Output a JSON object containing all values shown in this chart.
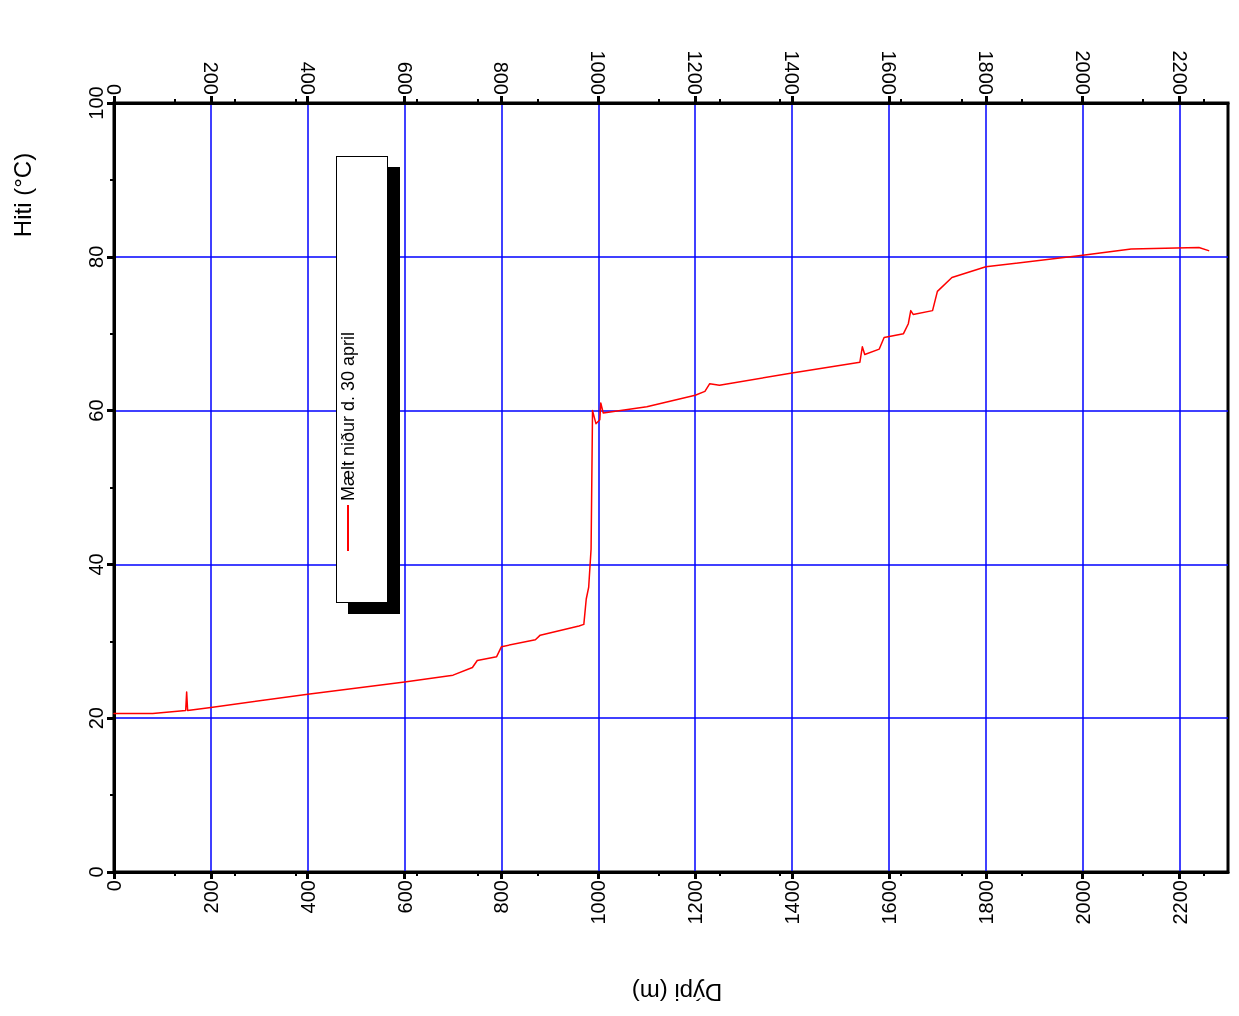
{
  "chart_data": {
    "type": "line",
    "xlabel": "Dýpi (m)",
    "ylabel": "Hiti (°C)",
    "xlim": [
      0,
      2300
    ],
    "xticks": [
      0,
      200,
      400,
      600,
      800,
      1000,
      1200,
      1400,
      1600,
      1800,
      2000,
      2200
    ],
    "x2lim": [
      0,
      2300
    ],
    "x2ticks": [
      0,
      200,
      400,
      600,
      800,
      1000,
      1200,
      1400,
      1600,
      1800,
      2000,
      2200
    ],
    "ylim": [
      0,
      100
    ],
    "yticks": [
      0,
      20,
      40,
      60,
      80,
      100
    ],
    "grid": true,
    "legend": "top left",
    "marker": "none",
    "line_style": "solid",
    "series": [
      {
        "name": "Mælt niður d. 30 april",
        "color": "#ff0000",
        "x": [
          0,
          80,
          148,
          150,
          152,
          200,
          400,
          600,
          700,
          740,
          750,
          790,
          800,
          870,
          880,
          960,
          970,
          975,
          980,
          985,
          988,
          995,
          1003,
          1005,
          1010,
          1100,
          1200,
          1220,
          1230,
          1250,
          1400,
          1540,
          1545,
          1550,
          1580,
          1590,
          1630,
          1640,
          1645,
          1650,
          1690,
          1700,
          1730,
          1800,
          2000,
          2100,
          2240,
          2260
        ],
        "values": [
          20.6,
          20.6,
          21.0,
          23.4,
          21.0,
          21.4,
          23.1,
          24.7,
          25.6,
          26.6,
          27.5,
          28.0,
          29.3,
          30.2,
          30.8,
          32.0,
          32.2,
          35.5,
          37.0,
          42.0,
          60.0,
          58.3,
          58.8,
          61.0,
          59.7,
          60.5,
          62.0,
          62.5,
          63.5,
          63.3,
          64.9,
          66.3,
          68.3,
          67.3,
          68.0,
          69.5,
          70.0,
          71.3,
          73.0,
          72.5,
          73.0,
          75.5,
          77.3,
          78.7,
          80.2,
          81.0,
          81.2,
          80.8
        ]
      }
    ]
  }
}
